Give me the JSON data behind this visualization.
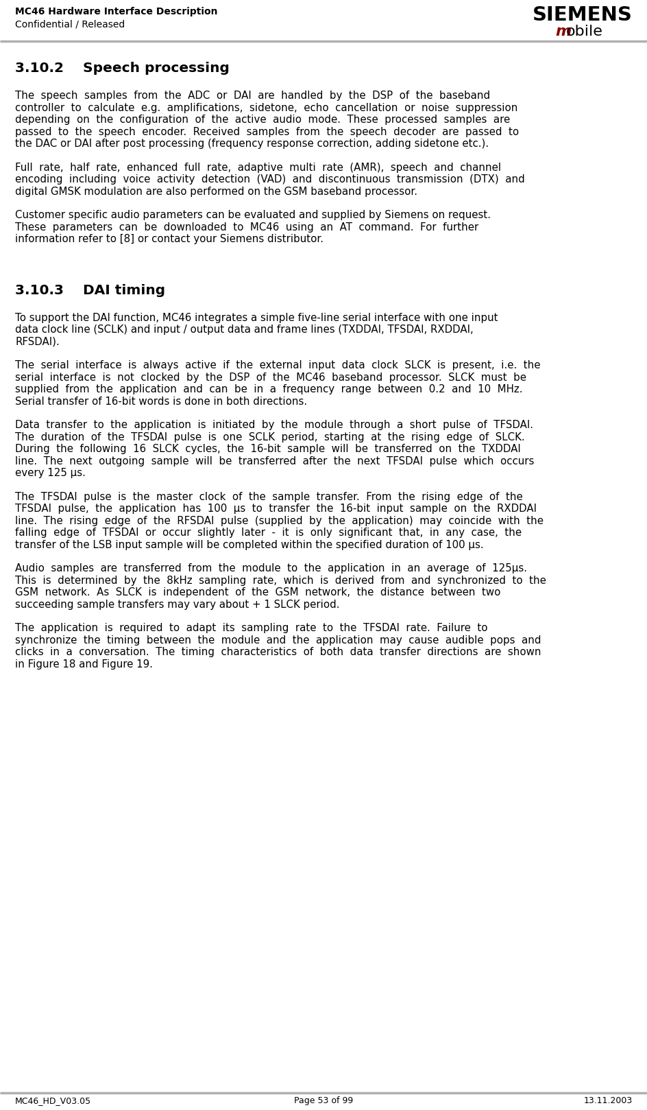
{
  "header_left_line1": "MC46 Hardware Interface Description",
  "header_left_line2": "Confidential / Released",
  "header_right_line1": "SIEMENS",
  "header_right_m_color": "#8B0000",
  "footer_left": "MC46_HD_V03.05",
  "footer_center": "Page 53 of 99",
  "footer_right": "13.11.2003",
  "section_title_1": "3.10.2    Speech processing",
  "section_title_2": "3.10.3    DAI timing",
  "para1": "The  speech  samples  from  the  ADC  or  DAI  are  handled  by  the  DSP  of  the  baseband controller  to  calculate  e.g.  amplifications,  sidetone,  echo  cancellation  or  noise  suppression depending  on  the  configuration  of  the  active  audio  mode.  These  processed  samples  are passed  to  the  speech  encoder.  Received  samples  from  the  speech  decoder  are  passed  to the DAC or DAI after post processing (frequency response correction, adding sidetone etc.).",
  "para1_lines": [
    "The  speech  samples  from  the  ADC  or  DAI  are  handled  by  the  DSP  of  the  baseband",
    "controller  to  calculate  e.g.  amplifications,  sidetone,  echo  cancellation  or  noise  suppression",
    "depending  on  the  configuration  of  the  active  audio  mode.  These  processed  samples  are",
    "passed  to  the  speech  encoder.  Received  samples  from  the  speech  decoder  are  passed  to",
    "the DAC or DAI after post processing (frequency response correction, adding sidetone etc.)."
  ],
  "para2_lines": [
    "Full  rate,  half  rate,  enhanced  full  rate,  adaptive  multi  rate  (AMR),  speech  and  channel",
    "encoding  including  voice  activity  detection  (VAD)  and  discontinuous  transmission  (DTX)  and",
    "digital GMSK modulation are also performed on the GSM baseband processor."
  ],
  "para3_lines": [
    "Customer specific audio parameters can be evaluated and supplied by Siemens on request.",
    "These  parameters  can  be  downloaded  to  MC46  using  an  AT  command.  For  further",
    "information refer to [8] or contact your Siemens distributor."
  ],
  "para4_lines": [
    "To support the DAI function, MC46 integrates a simple five-line serial interface with one input",
    "data clock line (SCLK) and input / output data and frame lines (TXDDAI, TFSDAI, RXDDAI,",
    "RFSDAI)."
  ],
  "para5_lines": [
    "The  serial  interface  is  always  active  if  the  external  input  data  clock  SLCK  is  present,  i.e.  the",
    "serial  interface  is  not  clocked  by  the  DSP  of  the  MC46  baseband  processor.  SLCK  must  be",
    "supplied  from  the  application  and  can  be  in  a  frequency  range  between  0.2  and  10  MHz.",
    "Serial transfer of 16-bit words is done in both directions."
  ],
  "para6_lines": [
    "Data  transfer  to  the  application  is  initiated  by  the  module  through  a  short  pulse  of  TFSDAI.",
    "The  duration  of  the  TFSDAI  pulse  is  one  SCLK  period,  starting  at  the  rising  edge  of  SLCK.",
    "During  the  following  16  SLCK  cycles,  the  16-bit  sample  will  be  transferred  on  the  TXDDAI",
    "line.  The  next  outgoing  sample  will  be  transferred  after  the  next  TFSDAI  pulse  which  occurs",
    "every 125 µs."
  ],
  "para7_lines": [
    "The  TFSDAI  pulse  is  the  master  clock  of  the  sample  transfer.  From  the  rising  edge  of  the",
    "TFSDAI  pulse,  the  application  has  100  µs  to  transfer  the  16-bit  input  sample  on  the  RXDDAI",
    "line.  The  rising  edge  of  the  RFSDAI  pulse  (supplied  by  the  application)  may  coincide  with  the",
    "falling  edge  of  TFSDAI  or  occur  slightly  later  -  it  is  only  significant  that,  in  any  case,  the",
    "transfer of the LSB input sample will be completed within the specified duration of 100 µs."
  ],
  "para8_lines": [
    "Audio  samples  are  transferred  from  the  module  to  the  application  in  an  average  of  125µs.",
    "This  is  determined  by  the  8kHz  sampling  rate,  which  is  derived  from  and  synchronized  to  the",
    "GSM  network.  As  SLCK  is  independent  of  the  GSM  network,  the  distance  between  two",
    "succeeding sample transfers may vary about + 1 SLCK period."
  ],
  "para9_lines": [
    "The  application  is  required  to  adapt  its  sampling  rate  to  the  TFSDAI  rate.  Failure  to",
    "synchronize  the  timing  between  the  module  and  the  application  may  cause  audible  pops  and",
    "clicks  in  a  conversation.  The  timing  characteristics  of  both  data  transfer  directions  are  shown",
    "in Figure 18 and Figure 19."
  ],
  "bg_color": "#ffffff",
  "text_color": "#000000",
  "separator_color": "#b0b0b0"
}
